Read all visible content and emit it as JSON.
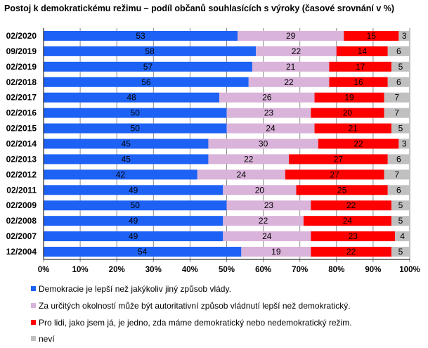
{
  "title": "Postoj k demokratickému režimu – podíl občanů souhlasících s výroky (časové srovnání v %)",
  "colors": {
    "democracy": "#1e62f5",
    "authoritarian": "#d9b3d9",
    "indifferent": "#ff0000",
    "dontknow": "#c0c0c0",
    "grid": "#8a8a8a"
  },
  "chart_data": {
    "type": "bar",
    "orientation": "horizontal",
    "stacked": "100%",
    "title": "Postoj k demokratickému režimu – podíl občanů souhlasících s výroky (časové srovnání v %)",
    "categories": [
      "02/2020",
      "09/2019",
      "02/2019",
      "02/2018",
      "02/2017",
      "02/2016",
      "02/2015",
      "02/2014",
      "02/2013",
      "02/2012",
      "02/2011",
      "02/2009",
      "02/2008",
      "02/2007",
      "12/2004"
    ],
    "series": [
      {
        "name": "Demokracie je lepší než jakýkoliv jiný způsob vlády.",
        "color": "#1e62f5",
        "values": [
          53,
          58,
          57,
          56,
          48,
          50,
          50,
          45,
          45,
          42,
          49,
          50,
          49,
          49,
          54
        ]
      },
      {
        "name": "Za určitých okolností může být autoritativní způsob vládnutí lepší než demokratický.",
        "color": "#d9b3d9",
        "values": [
          29,
          22,
          21,
          22,
          26,
          23,
          24,
          30,
          22,
          24,
          20,
          23,
          22,
          24,
          19
        ]
      },
      {
        "name": "Pro lidi, jako jsem já, je jedno, zda máme demokratický nebo nedemokratický režim.",
        "color": "#ff0000",
        "values": [
          15,
          14,
          17,
          16,
          19,
          20,
          21,
          22,
          27,
          27,
          25,
          22,
          24,
          23,
          22
        ]
      },
      {
        "name": "neví",
        "color": "#c0c0c0",
        "values": [
          3,
          6,
          5,
          6,
          7,
          7,
          5,
          3,
          6,
          7,
          6,
          5,
          5,
          4,
          5
        ]
      }
    ],
    "xticks": [
      "0%",
      "10%",
      "20%",
      "30%",
      "40%",
      "50%",
      "60%",
      "70%",
      "80%",
      "90%",
      "100%"
    ],
    "xlim": [
      0,
      100
    ],
    "grid": true,
    "legend_position": "bottom"
  }
}
